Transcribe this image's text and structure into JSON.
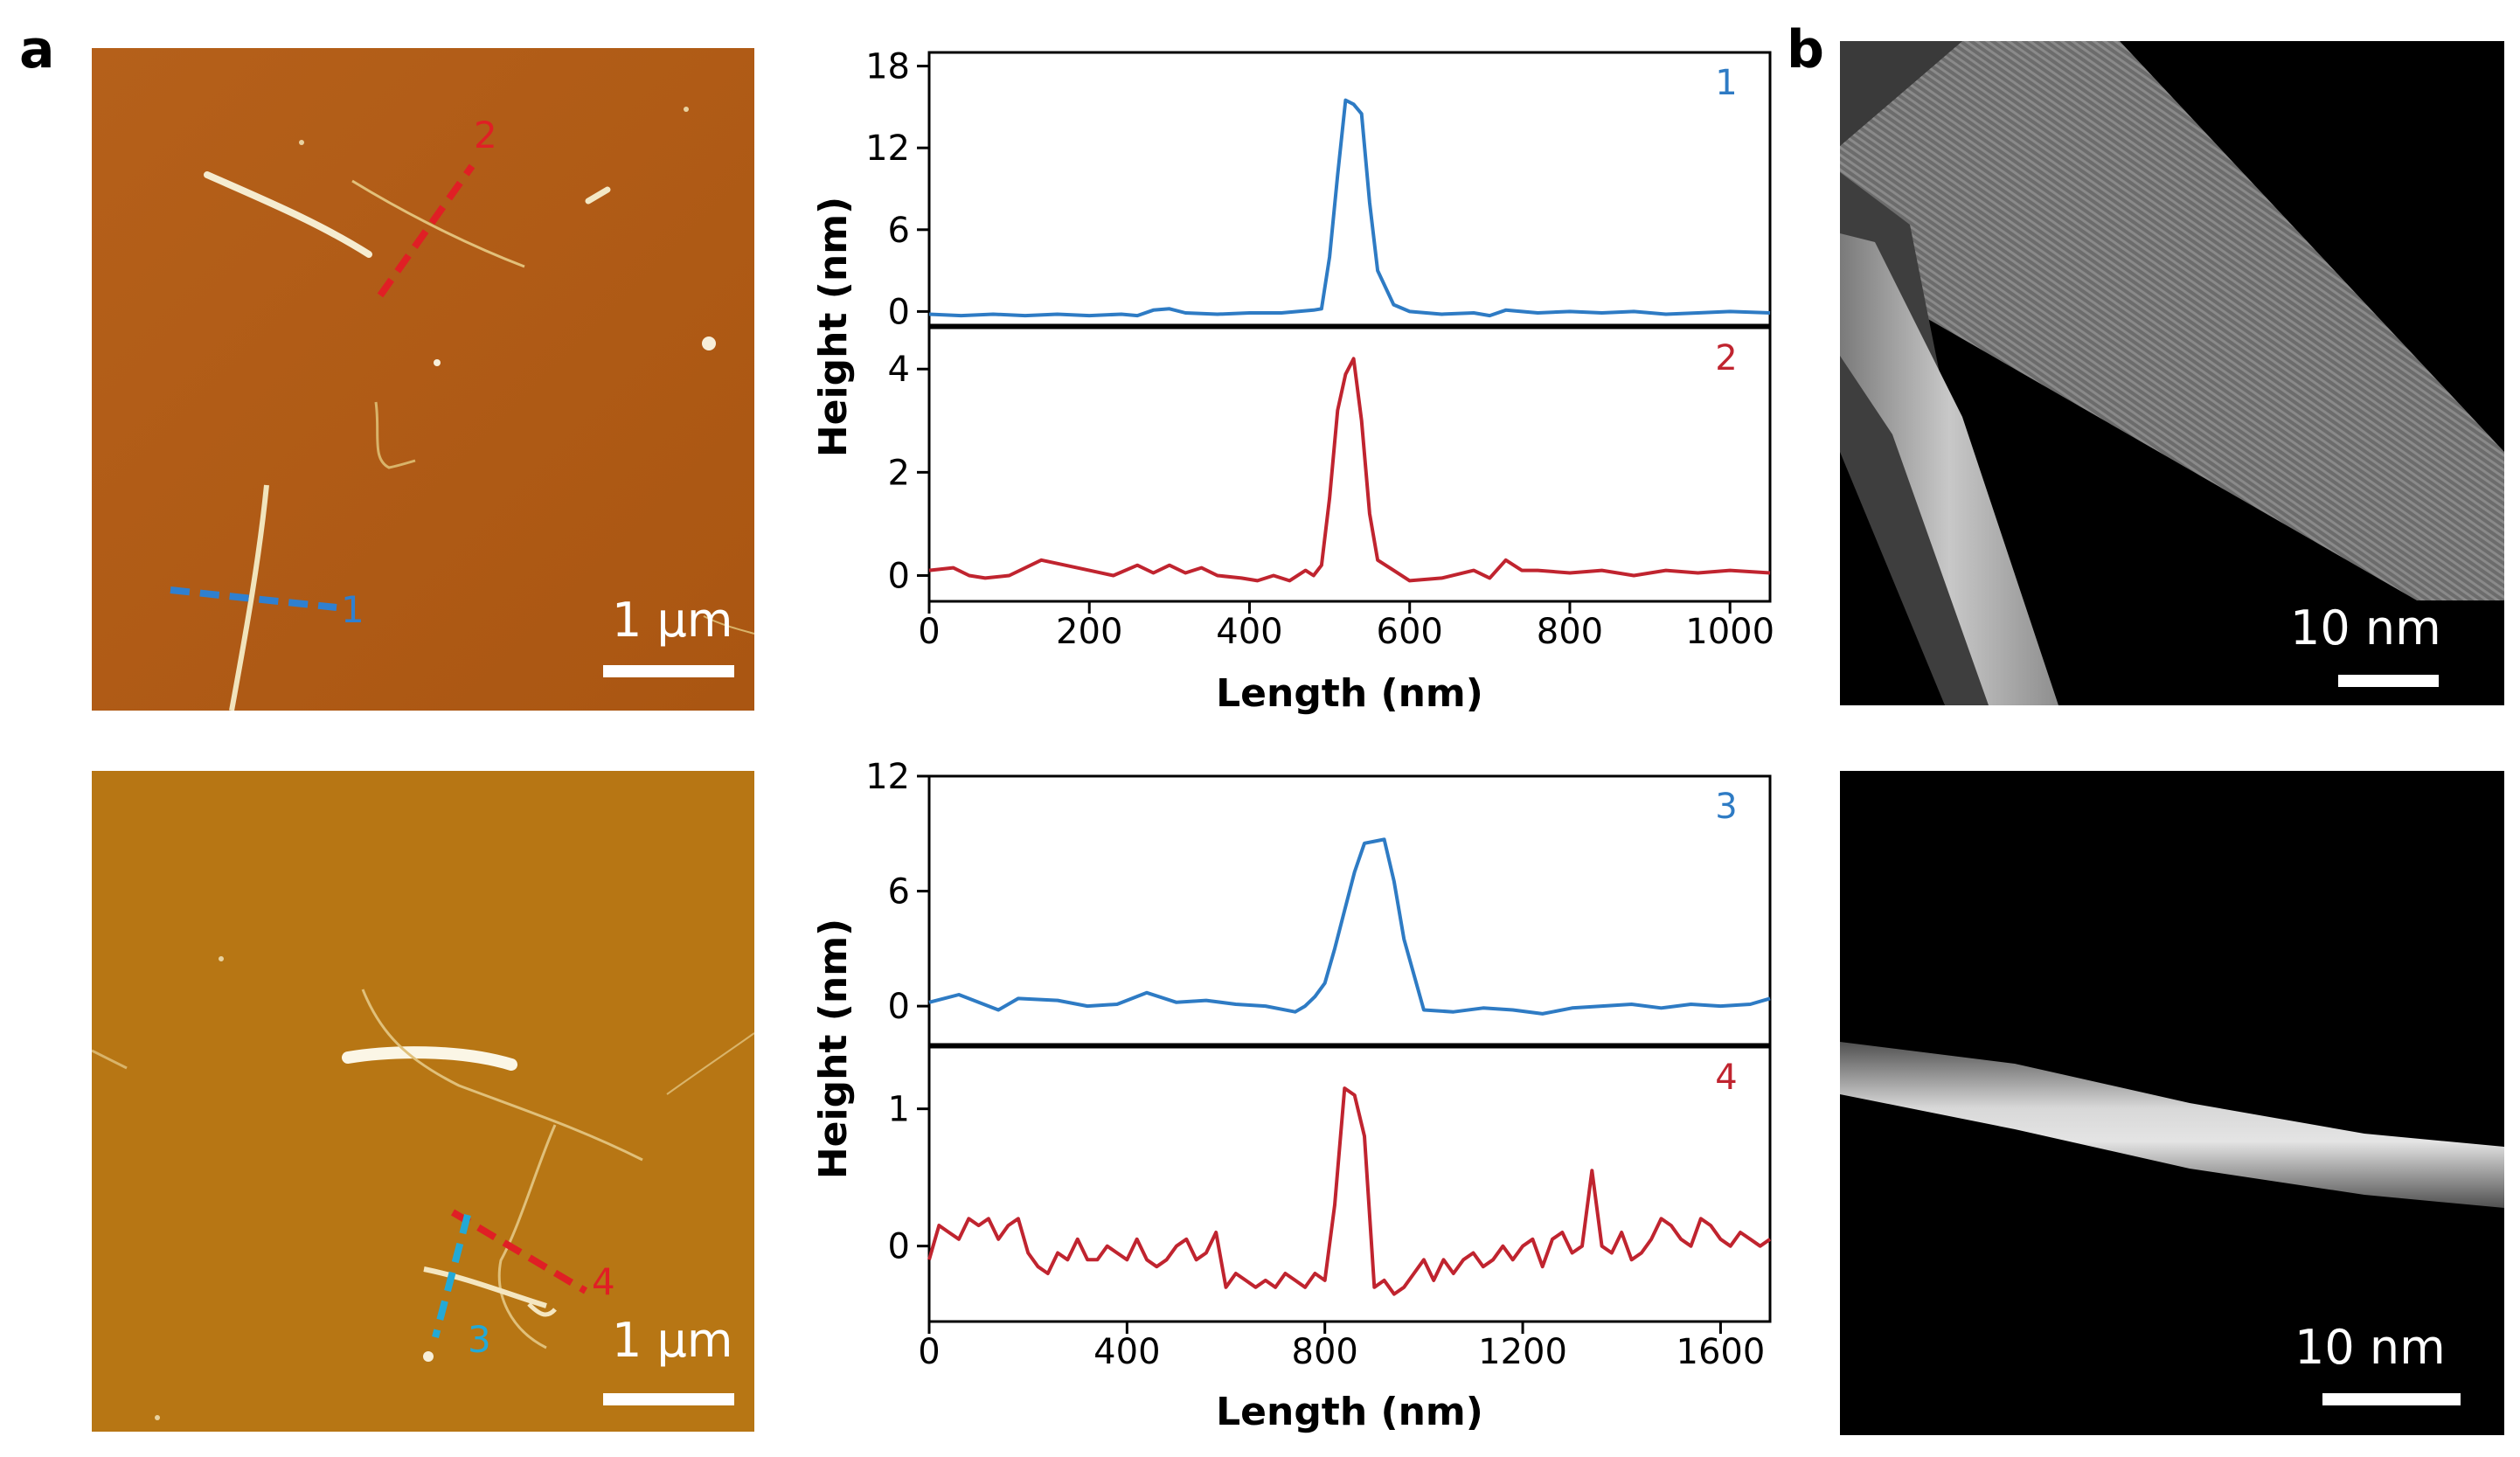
{
  "figure": {
    "panel_a_label": "a",
    "panel_b_label": "b"
  },
  "afm_images": [
    {
      "scale_label": "1 μm",
      "line_labels": [
        "1",
        "2"
      ],
      "colors": {
        "base": "#b05a14",
        "fiber": "#f3e7c3"
      }
    },
    {
      "scale_label": "1 μm",
      "line_labels": [
        "3",
        "4"
      ],
      "colors": {
        "base": "#b87414",
        "fiber": "#f3e7c3"
      }
    }
  ],
  "tem_images": [
    {
      "scale_label": "10 nm"
    },
    {
      "scale_label": "10 nm"
    }
  ],
  "profile_line_colors": {
    "blue": "#2e7bc4",
    "red": "#c0242f",
    "dash_blue": "#2f80d0",
    "dash_cyan": "#23a9d6",
    "dash_red": "#e01f25"
  },
  "chart_data": [
    {
      "type": "line",
      "panel": "top",
      "xlabel": "Length (nm)",
      "ylabel": "Height (nm)",
      "xlim": [
        0,
        1050
      ],
      "xticks": [
        0,
        200,
        400,
        600,
        800,
        1000
      ],
      "series": [
        {
          "name": "1",
          "color": "#2e7bc4",
          "ylim": [
            -1.0,
            19.0
          ],
          "yticks": [
            0,
            6,
            12,
            18
          ],
          "x": [
            0,
            40,
            80,
            120,
            160,
            200,
            240,
            260,
            280,
            300,
            320,
            360,
            400,
            440,
            460,
            480,
            490,
            500,
            510,
            520,
            530,
            540,
            550,
            560,
            580,
            600,
            640,
            680,
            700,
            720,
            760,
            800,
            840,
            880,
            920,
            960,
            1000,
            1050
          ],
          "y": [
            -0.2,
            -0.3,
            -0.2,
            -0.3,
            -0.2,
            -0.3,
            -0.2,
            -0.3,
            0.1,
            0.2,
            -0.1,
            -0.2,
            -0.1,
            -0.1,
            0.0,
            0.1,
            0.2,
            4.0,
            10.0,
            15.5,
            15.2,
            14.5,
            8.0,
            3.0,
            0.5,
            0.0,
            -0.2,
            -0.1,
            -0.3,
            0.1,
            -0.1,
            0.0,
            -0.1,
            0.0,
            -0.2,
            -0.1,
            0.0,
            -0.1
          ]
        },
        {
          "name": "2",
          "color": "#c0242f",
          "ylim": [
            -0.5,
            4.8
          ],
          "yticks": [
            0,
            2,
            4
          ],
          "x": [
            0,
            30,
            50,
            70,
            100,
            140,
            170,
            200,
            230,
            260,
            280,
            300,
            320,
            340,
            360,
            390,
            410,
            430,
            450,
            470,
            480,
            490,
            500,
            510,
            520,
            530,
            540,
            550,
            560,
            580,
            600,
            640,
            680,
            700,
            720,
            740,
            760,
            800,
            840,
            880,
            920,
            960,
            1000,
            1050
          ],
          "y": [
            0.1,
            0.15,
            0.0,
            -0.05,
            0.0,
            0.3,
            0.2,
            0.1,
            0.0,
            0.2,
            0.05,
            0.2,
            0.05,
            0.15,
            0.0,
            -0.05,
            -0.1,
            0.0,
            -0.1,
            0.1,
            0.0,
            0.2,
            1.5,
            3.2,
            3.9,
            4.2,
            3.0,
            1.2,
            0.3,
            0.1,
            -0.1,
            -0.05,
            0.1,
            -0.05,
            0.3,
            0.1,
            0.1,
            0.05,
            0.1,
            0.0,
            0.1,
            0.05,
            0.1,
            0.05
          ]
        }
      ]
    },
    {
      "type": "line",
      "panel": "bottom",
      "xlabel": "Length (nm)",
      "ylabel": "Height (nm)",
      "xlim": [
        0,
        1700
      ],
      "xticks": [
        0,
        400,
        800,
        1200,
        1600
      ],
      "series": [
        {
          "name": "3",
          "color": "#2e7bc4",
          "ylim": [
            -2.0,
            12.0
          ],
          "yticks": [
            0,
            6,
            12
          ],
          "x": [
            0,
            60,
            140,
            180,
            260,
            320,
            380,
            440,
            500,
            560,
            620,
            680,
            740,
            760,
            780,
            800,
            820,
            840,
            860,
            880,
            900,
            920,
            940,
            960,
            1000,
            1060,
            1120,
            1180,
            1240,
            1300,
            1360,
            1420,
            1480,
            1540,
            1600,
            1660,
            1700
          ],
          "y": [
            0.2,
            0.6,
            -0.2,
            0.4,
            0.3,
            0.0,
            0.1,
            0.7,
            0.2,
            0.3,
            0.1,
            0.0,
            -0.3,
            0.0,
            0.5,
            1.2,
            3.0,
            5.0,
            7.0,
            8.5,
            8.6,
            8.7,
            6.5,
            3.5,
            -0.2,
            -0.3,
            -0.1,
            -0.2,
            -0.4,
            -0.1,
            0.0,
            0.1,
            -0.1,
            0.1,
            0.0,
            0.1,
            0.4
          ]
        },
        {
          "name": "4",
          "color": "#c0242f",
          "ylim": [
            -0.55,
            1.45
          ],
          "yticks": [
            0,
            1
          ],
          "x": [
            0,
            20,
            40,
            60,
            80,
            100,
            120,
            140,
            160,
            180,
            200,
            220,
            240,
            260,
            280,
            300,
            320,
            340,
            360,
            380,
            400,
            420,
            440,
            460,
            480,
            500,
            520,
            540,
            560,
            580,
            600,
            620,
            640,
            660,
            680,
            700,
            720,
            740,
            760,
            780,
            800,
            820,
            840,
            860,
            880,
            900,
            920,
            940,
            960,
            980,
            1000,
            1020,
            1040,
            1060,
            1080,
            1100,
            1120,
            1140,
            1160,
            1180,
            1200,
            1220,
            1240,
            1260,
            1280,
            1300,
            1320,
            1340,
            1360,
            1380,
            1400,
            1420,
            1440,
            1460,
            1480,
            1500,
            1520,
            1540,
            1560,
            1580,
            1600,
            1620,
            1640,
            1660,
            1680,
            1700
          ],
          "y": [
            -0.1,
            0.15,
            0.1,
            0.05,
            0.2,
            0.15,
            0.2,
            0.05,
            0.15,
            0.2,
            -0.05,
            -0.15,
            -0.2,
            -0.05,
            -0.1,
            0.05,
            -0.1,
            -0.1,
            0.0,
            -0.05,
            -0.1,
            0.05,
            -0.1,
            -0.15,
            -0.1,
            0.0,
            0.05,
            -0.1,
            -0.05,
            0.1,
            -0.3,
            -0.2,
            -0.25,
            -0.3,
            -0.25,
            -0.3,
            -0.2,
            -0.25,
            -0.3,
            -0.2,
            -0.25,
            0.3,
            1.15,
            1.1,
            0.8,
            -0.3,
            -0.25,
            -0.35,
            -0.3,
            -0.2,
            -0.1,
            -0.25,
            -0.1,
            -0.2,
            -0.1,
            -0.05,
            -0.15,
            -0.1,
            0.0,
            -0.1,
            0.0,
            0.05,
            -0.15,
            0.05,
            0.1,
            -0.05,
            0.0,
            0.55,
            0.0,
            -0.05,
            0.1,
            -0.1,
            -0.05,
            0.05,
            0.2,
            0.15,
            0.05,
            0.0,
            0.2,
            0.15,
            0.05,
            0.0,
            0.1,
            0.05,
            0.0,
            0.05
          ]
        }
      ]
    }
  ]
}
